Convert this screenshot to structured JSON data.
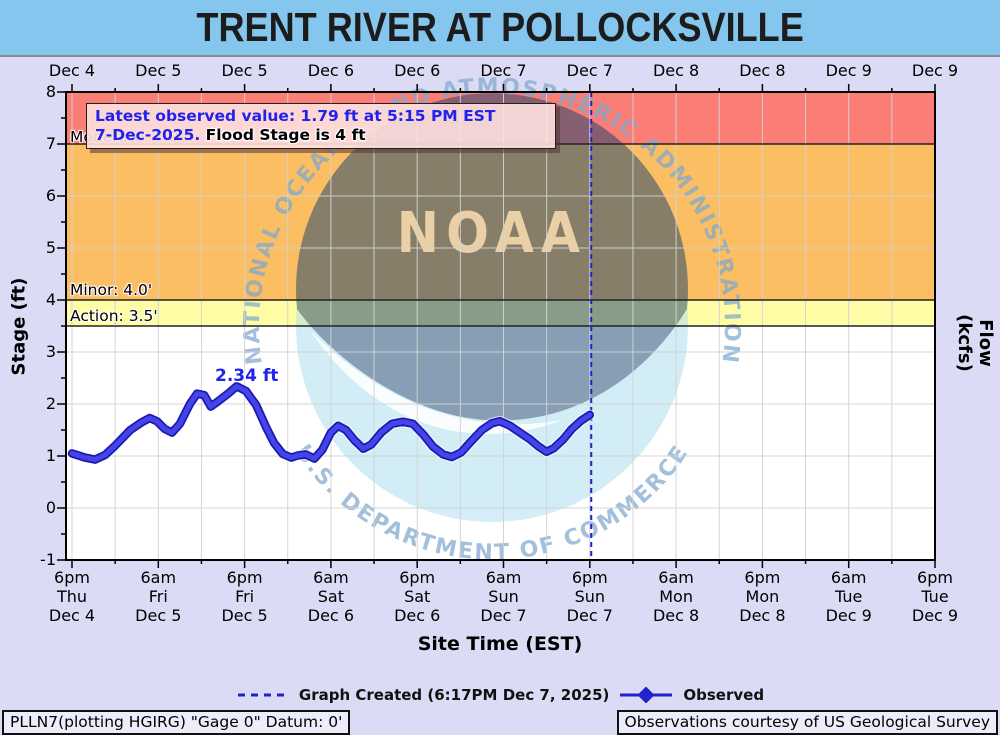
{
  "title": "TRENT RIVER AT POLLOCKSVILLE",
  "colors": {
    "title_bar": "#84C6EE",
    "background": "#DBDBF5",
    "red_band": "#FB7E76",
    "orange_band": "#FBBE62",
    "yellow_band": "#FEFDA6",
    "white_band": "#FFFFFF",
    "observed_line": "#3333CC",
    "created_line": "#2222CC",
    "annotation_blue": "#2222EE",
    "logo_light_blue": "#A9DCF0",
    "logo_dark_blue": "#13406E",
    "ring_text_blue": "#7FA8CE"
  },
  "annotation": {
    "line1": "Latest observed value: 1.79 ft at 5:15 PM EST",
    "line2_blue": "7-Dec-2025.",
    "line2_black": " Flood Stage is 4 ft"
  },
  "flood_labels": {
    "moderate": "Moderate: 7.0'",
    "minor": "Minor: 4.0'",
    "action": "Action: 3.5'"
  },
  "peak_label": "2.34 ft",
  "axes": {
    "left_label": "Stage (ft)",
    "right_label": "Flow (kcfs)",
    "x_label": "Site Time (EST)",
    "y_ticks": [
      8,
      7,
      6,
      5,
      4,
      3,
      2,
      1,
      0,
      -1
    ],
    "top_dates": [
      "Dec 4",
      "Dec 5",
      "Dec 5",
      "Dec 6",
      "Dec 6",
      "Dec 7",
      "Dec 7",
      "Dec 8",
      "Dec 8",
      "Dec 9",
      "Dec 9"
    ]
  },
  "legend": {
    "created": "Graph Created (6:17PM Dec 7, 2025)",
    "observed": "Observed"
  },
  "footer": {
    "left": "PLLN7(plotting HGIRG) \"Gage 0\" Datum: 0'",
    "right": "Observations courtesy of US Geological Survey"
  },
  "logo": {
    "noaa": "NOAA",
    "text_top": "NATIONAL OCEANIC AND ATMOSPHERIC ADMINISTRATION",
    "text_bottom": "U.S. DEPARTMENT OF COMMERCE"
  },
  "chart_data": {
    "type": "line",
    "title": "TRENT RIVER AT POLLOCKSVILLE",
    "xlabel": "Site Time (EST)",
    "ylabel": "Stage (ft)",
    "y2label": "Flow (kcfs)",
    "ylim": [
      -1,
      8
    ],
    "xlim_hours": [
      0,
      120
    ],
    "x_origin": "6pm Thu Dec 4 (EST)",
    "grid": true,
    "legend_position": "bottom",
    "flood_stages": {
      "action": 3.5,
      "minor": 4.0,
      "moderate": 7.0,
      "flood_stage_ft": 4
    },
    "latest_observed": {
      "value_ft": 1.79,
      "time": "5:15 PM EST 7-Dec-2025"
    },
    "peak_annotation": {
      "value_ft": 2.34,
      "hour": 22.9
    },
    "graph_created": {
      "label": "6:17PM Dec 7, 2025",
      "hour": 72.2
    },
    "x_ticks": [
      {
        "hour": 0,
        "time": "6pm",
        "day": "Thu",
        "date": "Dec 4"
      },
      {
        "hour": 12,
        "time": "6am",
        "day": "Fri",
        "date": "Dec 5"
      },
      {
        "hour": 24,
        "time": "6pm",
        "day": "Fri",
        "date": "Dec 5"
      },
      {
        "hour": 36,
        "time": "6am",
        "day": "Sat",
        "date": "Dec 6"
      },
      {
        "hour": 48,
        "time": "6pm",
        "day": "Sat",
        "date": "Dec 6"
      },
      {
        "hour": 60,
        "time": "6am",
        "day": "Sun",
        "date": "Dec 7"
      },
      {
        "hour": 72,
        "time": "6pm",
        "day": "Sun",
        "date": "Dec 7"
      },
      {
        "hour": 84,
        "time": "6am",
        "day": "Mon",
        "date": "Dec 8"
      },
      {
        "hour": 96,
        "time": "6pm",
        "day": "Mon",
        "date": "Dec 8"
      },
      {
        "hour": 108,
        "time": "6am",
        "day": "Tue",
        "date": "Dec 9"
      },
      {
        "hour": 120,
        "time": "6pm",
        "day": "Tue",
        "date": "Dec 9"
      }
    ],
    "series": [
      {
        "name": "Observed",
        "units": "ft",
        "points": [
          [
            0.0,
            1.05
          ],
          [
            1.8,
            0.97
          ],
          [
            3.2,
            0.93
          ],
          [
            4.6,
            1.02
          ],
          [
            6.0,
            1.2
          ],
          [
            8.1,
            1.5
          ],
          [
            9.7,
            1.65
          ],
          [
            10.8,
            1.73
          ],
          [
            11.8,
            1.67
          ],
          [
            12.9,
            1.52
          ],
          [
            13.9,
            1.45
          ],
          [
            15.0,
            1.62
          ],
          [
            16.4,
            2.0
          ],
          [
            17.4,
            2.2
          ],
          [
            18.4,
            2.17
          ],
          [
            19.3,
            1.95
          ],
          [
            20.3,
            2.05
          ],
          [
            21.7,
            2.2
          ],
          [
            22.9,
            2.34
          ],
          [
            24.2,
            2.25
          ],
          [
            25.6,
            1.98
          ],
          [
            27.0,
            1.55
          ],
          [
            28.1,
            1.25
          ],
          [
            29.3,
            1.04
          ],
          [
            30.5,
            0.97
          ],
          [
            31.4,
            1.01
          ],
          [
            32.5,
            1.03
          ],
          [
            33.7,
            0.95
          ],
          [
            34.8,
            1.12
          ],
          [
            36.0,
            1.45
          ],
          [
            37.0,
            1.58
          ],
          [
            38.1,
            1.5
          ],
          [
            39.3,
            1.3
          ],
          [
            40.5,
            1.14
          ],
          [
            41.6,
            1.22
          ],
          [
            43.0,
            1.45
          ],
          [
            44.5,
            1.62
          ],
          [
            46.0,
            1.66
          ],
          [
            47.4,
            1.62
          ],
          [
            48.8,
            1.42
          ],
          [
            50.2,
            1.18
          ],
          [
            51.6,
            1.03
          ],
          [
            52.8,
            0.98
          ],
          [
            54.1,
            1.07
          ],
          [
            55.5,
            1.28
          ],
          [
            57.0,
            1.5
          ],
          [
            58.4,
            1.63
          ],
          [
            59.5,
            1.67
          ],
          [
            60.9,
            1.58
          ],
          [
            62.3,
            1.45
          ],
          [
            63.7,
            1.32
          ],
          [
            64.9,
            1.18
          ],
          [
            66.0,
            1.08
          ],
          [
            67.0,
            1.15
          ],
          [
            68.3,
            1.32
          ],
          [
            69.5,
            1.52
          ],
          [
            70.8,
            1.68
          ],
          [
            72.0,
            1.79
          ]
        ]
      }
    ]
  }
}
